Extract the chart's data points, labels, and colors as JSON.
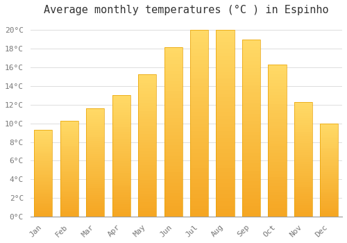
{
  "title": "Average monthly temperatures (°C ) in Espinho",
  "months": [
    "Jan",
    "Feb",
    "Mar",
    "Apr",
    "May",
    "Jun",
    "Jul",
    "Aug",
    "Sep",
    "Oct",
    "Nov",
    "Dec"
  ],
  "values": [
    9.3,
    10.3,
    11.6,
    13.0,
    15.3,
    18.2,
    20.0,
    20.0,
    19.0,
    16.3,
    12.3,
    10.0
  ],
  "bar_color_bottom": "#F5A623",
  "bar_color_top": "#FFD966",
  "bar_edge_color": "#E8A000",
  "ylim": [
    0,
    21
  ],
  "yticks": [
    0,
    2,
    4,
    6,
    8,
    10,
    12,
    14,
    16,
    18,
    20
  ],
  "ytick_labels": [
    "0°C",
    "2°C",
    "4°C",
    "6°C",
    "8°C",
    "10°C",
    "12°C",
    "14°C",
    "16°C",
    "18°C",
    "20°C"
  ],
  "grid_color": "#DDDDDD",
  "bg_color": "#FFFFFF",
  "title_fontsize": 11,
  "tick_fontsize": 8,
  "bar_width": 0.7
}
